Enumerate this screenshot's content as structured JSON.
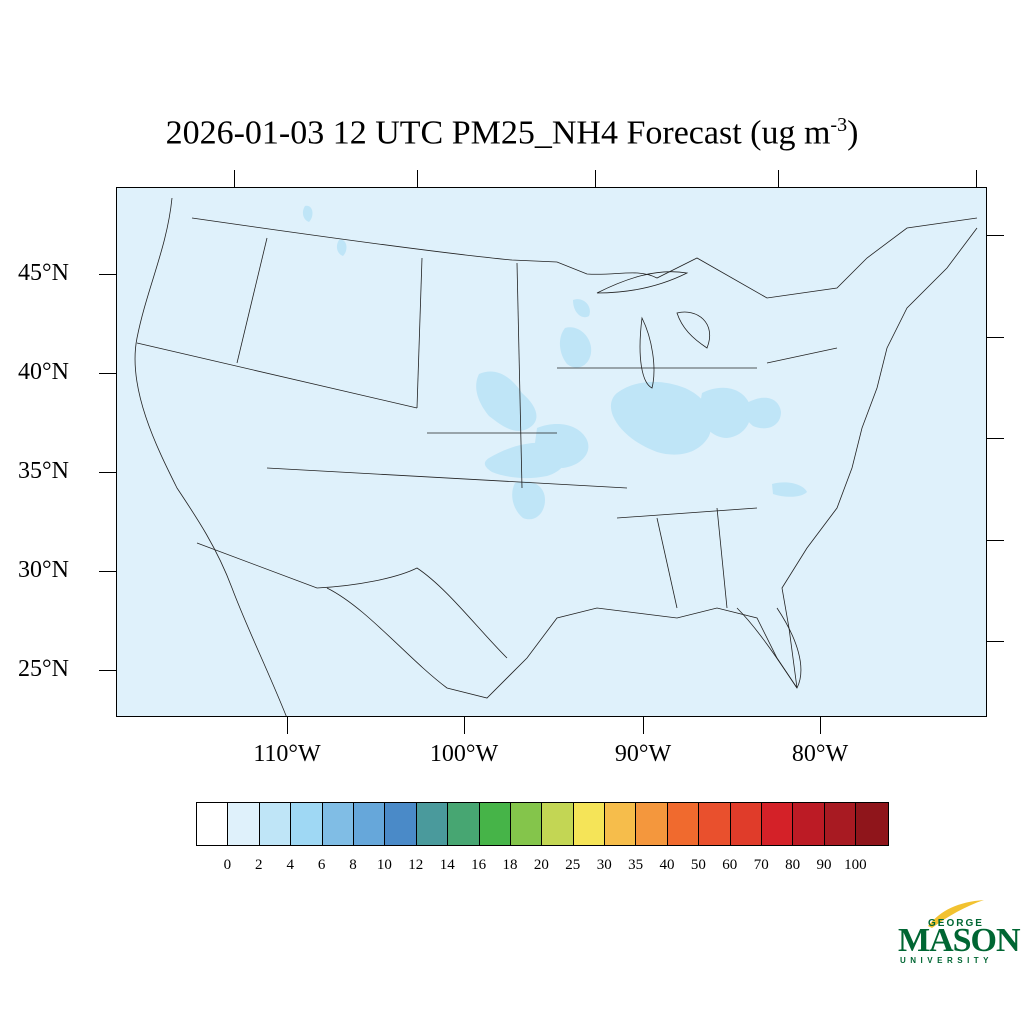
{
  "title": {
    "text": "2026-01-03 12 UTC PM25_NH4 Forecast (ug m",
    "exponent": "-3",
    "suffix": ")"
  },
  "map": {
    "latitude_labels": [
      "45°N",
      "40°N",
      "35°N",
      "30°N",
      "25°N"
    ],
    "longitude_labels": [
      "110°W",
      "100°W",
      "90°W",
      "80°W"
    ],
    "background_level_color": "#dff1fb",
    "elevated_level_color": "#bfe5f7"
  },
  "colorbar": {
    "labels": [
      "0",
      "2",
      "4",
      "6",
      "8",
      "10",
      "12",
      "14",
      "16",
      "18",
      "20",
      "25",
      "30",
      "35",
      "40",
      "50",
      "60",
      "70",
      "80",
      "90",
      "100"
    ],
    "colors": [
      "#ffffff",
      "#dff1fb",
      "#bfe5f7",
      "#9fd8f4",
      "#80bde5",
      "#66a7da",
      "#4a8ac8",
      "#4a9a9c",
      "#47a672",
      "#46b448",
      "#84c54b",
      "#c3d654",
      "#f5e458",
      "#f6bd4b",
      "#f4973d",
      "#f06a2e",
      "#e9502d",
      "#e03c2a",
      "#d42128",
      "#bc1b25",
      "#a81a22",
      "#8f151b"
    ]
  },
  "logo": {
    "george": "GEORGE",
    "mason": "MASON",
    "university": "UNIVERSITY"
  }
}
